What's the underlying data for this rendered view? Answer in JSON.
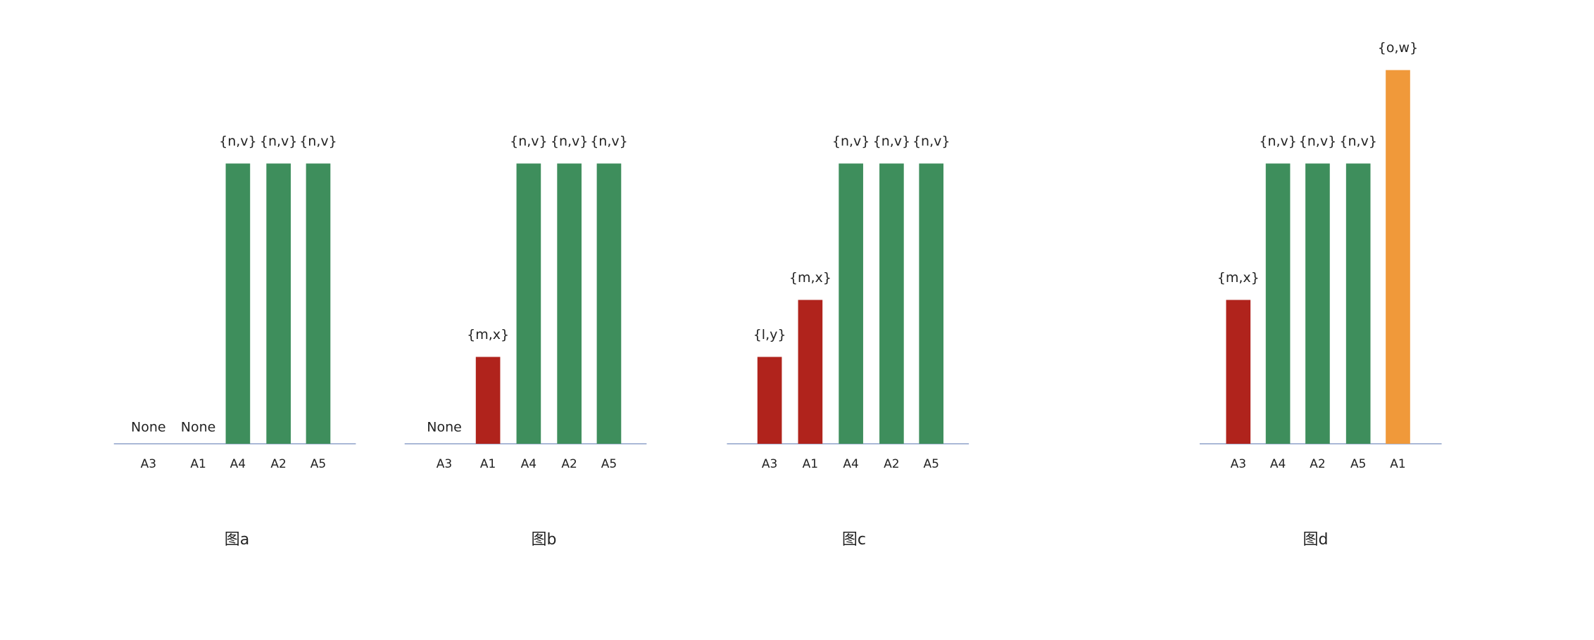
{
  "chart_data": [
    {
      "type": "bar",
      "title": "图a",
      "categories": [
        "A3",
        "A1",
        "A4",
        "A2",
        "A5"
      ],
      "values": [
        null,
        null,
        3,
        3,
        3
      ],
      "value_labels": [
        "None",
        "None",
        "{n,v}",
        "{n,v}",
        "{n,v}"
      ],
      "colors": [
        null,
        null,
        "#3e8e5c",
        "#3e8e5c",
        "#3e8e5c"
      ],
      "ylim": [
        0,
        4
      ]
    },
    {
      "type": "bar",
      "title": "图b",
      "categories": [
        "A3",
        "A1",
        "A4",
        "A2",
        "A5"
      ],
      "values": [
        null,
        0.93,
        3,
        3,
        3
      ],
      "value_labels": [
        "None",
        "{m,x}",
        "{n,v}",
        "{n,v}",
        "{n,v}"
      ],
      "colors": [
        null,
        "#b0231c",
        "#3e8e5c",
        "#3e8e5c",
        "#3e8e5c"
      ],
      "ylim": [
        0,
        4
      ]
    },
    {
      "type": "bar",
      "title": "图c",
      "categories": [
        "A3",
        "A1",
        "A4",
        "A2",
        "A5"
      ],
      "values": [
        0.93,
        1.54,
        3,
        3,
        3
      ],
      "value_labels": [
        "{l,y}",
        "{m,x}",
        "{n,v}",
        "{n,v}",
        "{n,v}"
      ],
      "colors": [
        "#b0231c",
        "#b0231c",
        "#3e8e5c",
        "#3e8e5c",
        "#3e8e5c"
      ],
      "ylim": [
        0,
        4
      ]
    },
    {
      "type": "bar",
      "title": "图d",
      "categories": [
        "A3",
        "A4",
        "A2",
        "A5",
        "A1"
      ],
      "values": [
        1.54,
        3,
        3,
        3,
        4
      ],
      "value_labels": [
        "{m,x}",
        "{n,v}",
        "{n,v}",
        "{n,v}",
        "{o,w}"
      ],
      "colors": [
        "#b0231c",
        "#3e8e5c",
        "#3e8e5c",
        "#3e8e5c",
        "#f0993a"
      ],
      "ylim": [
        0,
        4
      ]
    }
  ]
}
